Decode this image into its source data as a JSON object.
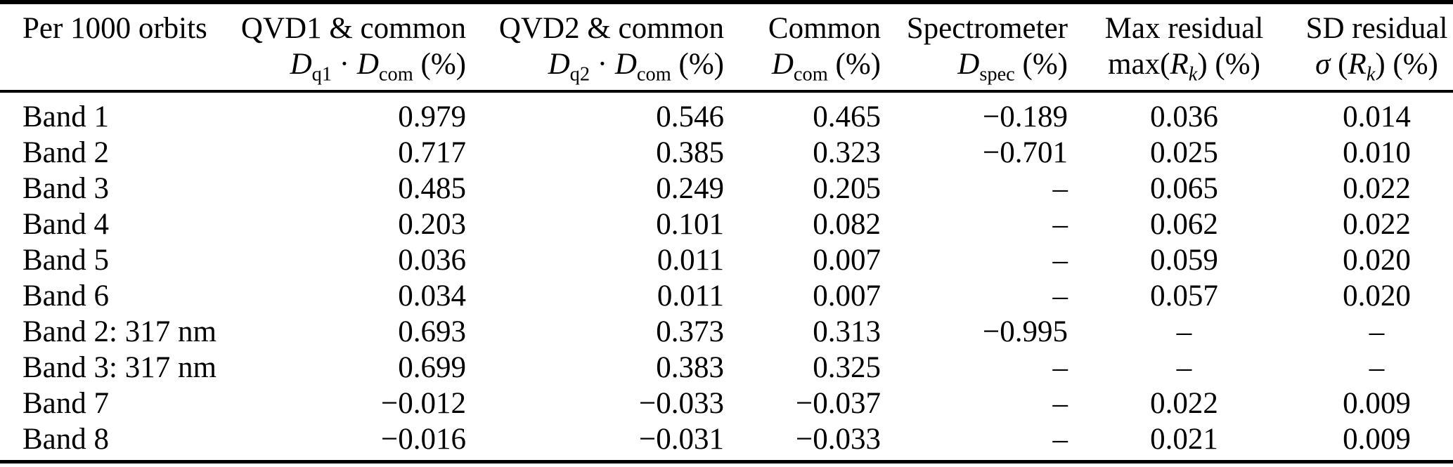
{
  "page": {
    "background_color": "#ffffff",
    "text_color": "#000000",
    "rule_color": "#000000"
  },
  "table": {
    "columns": [
      {
        "id": "label",
        "line1": "Per 1000 orbits",
        "line2_segments": []
      },
      {
        "id": "qvd1_common",
        "line1": "QVD1 & common",
        "line2_segments": [
          {
            "k": "it",
            "t": "D"
          },
          {
            "k": "sub",
            "t": "q1"
          },
          {
            "k": "rm",
            "t": " · "
          },
          {
            "k": "it",
            "t": "D"
          },
          {
            "k": "sub",
            "t": "com"
          },
          {
            "k": "rm",
            "t": " (%)"
          }
        ]
      },
      {
        "id": "qvd2_common",
        "line1": "QVD2 & common",
        "line2_segments": [
          {
            "k": "it",
            "t": "D"
          },
          {
            "k": "sub",
            "t": "q2"
          },
          {
            "k": "rm",
            "t": " · "
          },
          {
            "k": "it",
            "t": "D"
          },
          {
            "k": "sub",
            "t": "com"
          },
          {
            "k": "rm",
            "t": " (%)"
          }
        ]
      },
      {
        "id": "common",
        "line1": "Common",
        "line2_segments": [
          {
            "k": "it",
            "t": "D"
          },
          {
            "k": "sub",
            "t": "com"
          },
          {
            "k": "rm",
            "t": " (%)"
          }
        ]
      },
      {
        "id": "spectrometer",
        "line1": "Spectrometer",
        "line2_segments": [
          {
            "k": "it",
            "t": "D"
          },
          {
            "k": "sub",
            "t": "spec"
          },
          {
            "k": "rm",
            "t": " (%)"
          }
        ]
      },
      {
        "id": "max_residual",
        "line1": "Max residual",
        "line2_segments": [
          {
            "k": "rm",
            "t": "max("
          },
          {
            "k": "it",
            "t": "R"
          },
          {
            "k": "subit",
            "t": "k"
          },
          {
            "k": "rm",
            "t": ") (%)"
          }
        ]
      },
      {
        "id": "sd_residual",
        "line1": "SD residual",
        "line2_segments": [
          {
            "k": "it",
            "t": "σ"
          },
          {
            "k": "rm",
            "t": " ("
          },
          {
            "k": "it",
            "t": "R"
          },
          {
            "k": "subit",
            "t": "k"
          },
          {
            "k": "rm",
            "t": ") (%)"
          }
        ]
      }
    ],
    "rows": [
      {
        "label": "Band 1",
        "values": [
          "0.979",
          "0.546",
          "0.465",
          "−0.189",
          "0.036",
          "0.014"
        ]
      },
      {
        "label": "Band 2",
        "values": [
          "0.717",
          "0.385",
          "0.323",
          "−0.701",
          "0.025",
          "0.010"
        ]
      },
      {
        "label": "Band 3",
        "values": [
          "0.485",
          "0.249",
          "0.205",
          "–",
          "0.065",
          "0.022"
        ]
      },
      {
        "label": "Band 4",
        "values": [
          "0.203",
          "0.101",
          "0.082",
          "–",
          "0.062",
          "0.022"
        ]
      },
      {
        "label": "Band 5",
        "values": [
          "0.036",
          "0.011",
          "0.007",
          "–",
          "0.059",
          "0.020"
        ]
      },
      {
        "label": "Band 6",
        "values": [
          "0.034",
          "0.011",
          "0.007",
          "–",
          "0.057",
          "0.020"
        ]
      },
      {
        "label": "Band 2: 317 nm",
        "values": [
          "0.693",
          "0.373",
          "0.313",
          "−0.995",
          "–",
          "–"
        ]
      },
      {
        "label": "Band 3: 317 nm",
        "values": [
          "0.699",
          "0.383",
          "0.325",
          "–",
          "–",
          "–"
        ]
      },
      {
        "label": "Band 7",
        "values": [
          "−0.012",
          "−0.033",
          "−0.037",
          "–",
          "0.022",
          "0.009"
        ]
      },
      {
        "label": "Band 8",
        "values": [
          "−0.016",
          "−0.031",
          "−0.033",
          "–",
          "0.021",
          "0.009"
        ]
      }
    ]
  }
}
